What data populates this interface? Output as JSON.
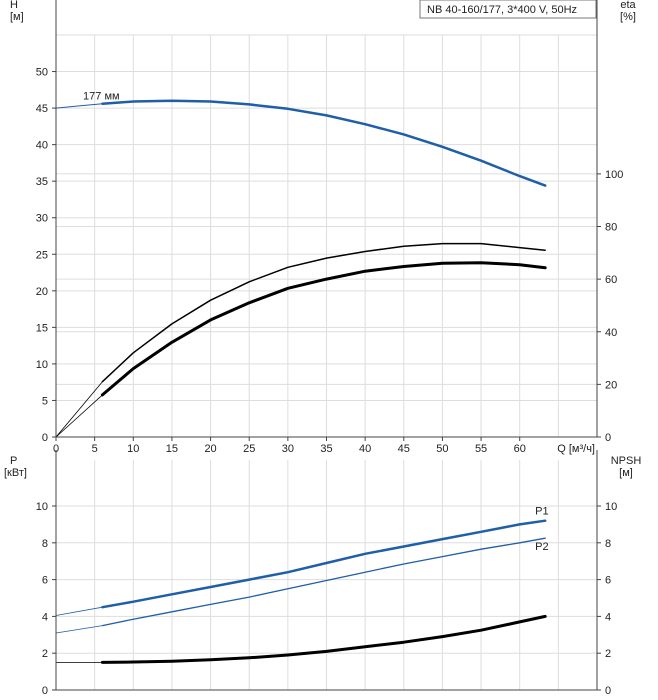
{
  "title": "NB 40-160/177, 3*400 V, 50Hz",
  "colors": {
    "blue": "#1f5ea8",
    "black": "#000000",
    "grid": "#dddddd",
    "axis": "#444444"
  },
  "chart_data": [
    {
      "type": "line",
      "panel": "top",
      "left_axis": {
        "label_line1": "H",
        "label_line2": "[м]",
        "ylim": [
          0,
          55
        ],
        "ticks": [
          0,
          5,
          10,
          15,
          20,
          25,
          30,
          35,
          40,
          45,
          50
        ]
      },
      "right_axis": {
        "label_line1": "eta",
        "label_line2": "[%]",
        "ylim": [
          0,
          152.78
        ],
        "ticks": [
          0,
          20,
          40,
          60,
          80,
          100
        ]
      },
      "x_axis": {
        "label": "Q [м³/ч]",
        "xlim": [
          0,
          70
        ],
        "ticks": [
          0,
          5,
          10,
          15,
          20,
          25,
          30,
          35,
          40,
          45,
          50,
          55,
          60
        ]
      },
      "grid": true,
      "series": [
        {
          "name": "177 мм",
          "axis": "left",
          "color": "blue",
          "width": 2.5,
          "x": [
            6,
            10,
            15,
            20,
            25,
            30,
            35,
            40,
            45,
            50,
            55,
            60,
            63.3
          ],
          "y": [
            45.6,
            45.9,
            46.0,
            45.9,
            45.5,
            44.9,
            44.0,
            42.8,
            41.4,
            39.7,
            37.8,
            35.7,
            34.4
          ]
        },
        {
          "name": "",
          "axis": "left",
          "color": "blue",
          "width": 1,
          "x": [
            0,
            3,
            6
          ],
          "y": [
            45.0,
            45.3,
            45.6
          ]
        },
        {
          "name": "",
          "axis": "right",
          "color": "black",
          "width": 1.5,
          "x": [
            6,
            10,
            15,
            20,
            25,
            30,
            35,
            40,
            45,
            50,
            55,
            60,
            63.3
          ],
          "y": [
            21,
            32,
            43,
            52,
            59,
            64.5,
            68,
            70.5,
            72.5,
            73.5,
            73.5,
            72,
            71
          ]
        },
        {
          "name": "",
          "axis": "right",
          "color": "black",
          "width": 3,
          "x": [
            6,
            10,
            15,
            20,
            25,
            30,
            35,
            40,
            45,
            50,
            55,
            60,
            63.3
          ],
          "y": [
            16,
            26,
            36,
            44.5,
            51,
            56.5,
            60,
            63,
            64.8,
            66,
            66.2,
            65.5,
            64.3
          ]
        },
        {
          "name": "",
          "axis": "right",
          "color": "black",
          "width": 0.8,
          "x": [
            0,
            3,
            6
          ],
          "y": [
            0,
            10.5,
            21
          ]
        },
        {
          "name": "",
          "axis": "right",
          "color": "black",
          "width": 0.8,
          "x": [
            0,
            3,
            6
          ],
          "y": [
            0,
            8,
            16
          ]
        }
      ],
      "annotations": [
        {
          "text": "177 мм",
          "x": 3.5,
          "y": 46.2
        }
      ]
    },
    {
      "type": "line",
      "panel": "bottom",
      "left_axis": {
        "label_line1": "P",
        "label_line2": "[кВт]",
        "ylim": [
          0,
          12.5
        ],
        "ticks": [
          0,
          2,
          4,
          6,
          8,
          10
        ]
      },
      "right_axis": {
        "label_line1": "NPSH",
        "label_line2": "[м]",
        "ylim": [
          0,
          12.5
        ],
        "ticks": [
          0,
          2,
          4,
          6,
          8,
          10
        ]
      },
      "x_axis": {
        "xlim": [
          0,
          70
        ]
      },
      "grid": true,
      "series": [
        {
          "name": "P1",
          "axis": "left",
          "color": "blue",
          "width": 2.5,
          "x": [
            6,
            10,
            15,
            20,
            25,
            30,
            35,
            40,
            45,
            50,
            55,
            60,
            63.3
          ],
          "y": [
            4.5,
            4.8,
            5.2,
            5.6,
            6.0,
            6.4,
            6.9,
            7.4,
            7.8,
            8.2,
            8.6,
            9.0,
            9.2
          ]
        },
        {
          "name": "P2",
          "axis": "left",
          "color": "blue",
          "width": 1.3,
          "x": [
            6,
            10,
            15,
            20,
            25,
            30,
            35,
            40,
            45,
            50,
            55,
            60,
            63.3
          ],
          "y": [
            3.5,
            3.85,
            4.25,
            4.65,
            5.05,
            5.5,
            5.95,
            6.4,
            6.85,
            7.25,
            7.65,
            8.0,
            8.25
          ]
        },
        {
          "name": "",
          "axis": "right",
          "color": "black",
          "width": 3,
          "x": [
            6,
            10,
            15,
            20,
            25,
            30,
            35,
            40,
            45,
            50,
            55,
            60,
            63.3
          ],
          "y": [
            1.5,
            1.52,
            1.56,
            1.64,
            1.75,
            1.9,
            2.1,
            2.35,
            2.6,
            2.9,
            3.25,
            3.7,
            4.0
          ]
        },
        {
          "name": "",
          "axis": "left",
          "color": "blue",
          "width": 0.8,
          "x": [
            0,
            6
          ],
          "y": [
            4.05,
            4.5
          ]
        },
        {
          "name": "",
          "axis": "left",
          "color": "blue",
          "width": 0.8,
          "x": [
            0,
            6
          ],
          "y": [
            3.1,
            3.5
          ]
        },
        {
          "name": "",
          "axis": "right",
          "color": "black",
          "width": 0.8,
          "x": [
            0,
            6
          ],
          "y": [
            1.5,
            1.5
          ]
        }
      ],
      "annotations": [
        {
          "text": "P1",
          "x": 62.0,
          "y": 9.55
        },
        {
          "text": "P2",
          "x": 62.0,
          "y": 7.6
        }
      ]
    }
  ]
}
